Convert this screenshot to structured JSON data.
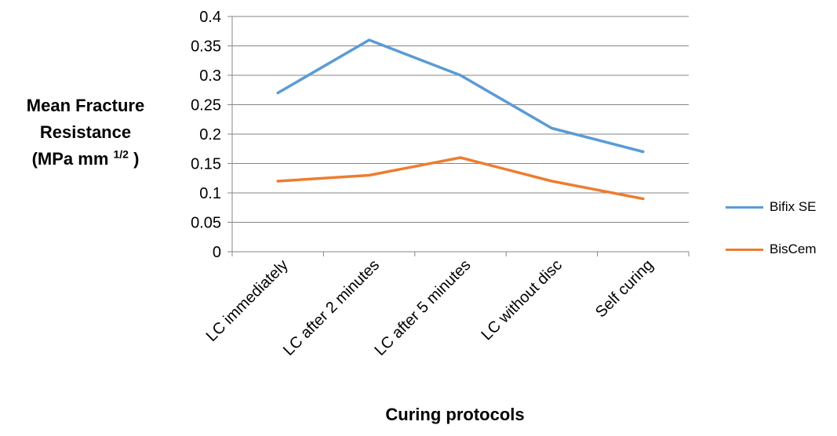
{
  "chart_data": {
    "type": "line",
    "categories": [
      "LC immediately",
      "LC after 2 minutes",
      "LC after 5 minutes",
      "LC without disc",
      "Self curing"
    ],
    "series": [
      {
        "name": "Bifix SE",
        "color": "#5b9bd5",
        "values": [
          0.27,
          0.36,
          0.3,
          0.21,
          0.17
        ]
      },
      {
        "name": "BisCem",
        "color": "#ed7d31",
        "values": [
          0.12,
          0.13,
          0.16,
          0.12,
          0.09
        ]
      }
    ],
    "yticks": [
      "0",
      "0.05",
      "0.1",
      "0.15",
      "0.2",
      "0.25",
      "0.3",
      "0.35",
      "0.4"
    ],
    "ylim": [
      0,
      0.4
    ],
    "grid": true,
    "legend_position": "right",
    "xlabel": "Curing protocols",
    "ylabel": {
      "line1": "Mean Fracture",
      "line2": "Resistance",
      "line3_pre": "(MPa mm ",
      "line3_sup": "1/2",
      "line3_post": " )"
    }
  }
}
